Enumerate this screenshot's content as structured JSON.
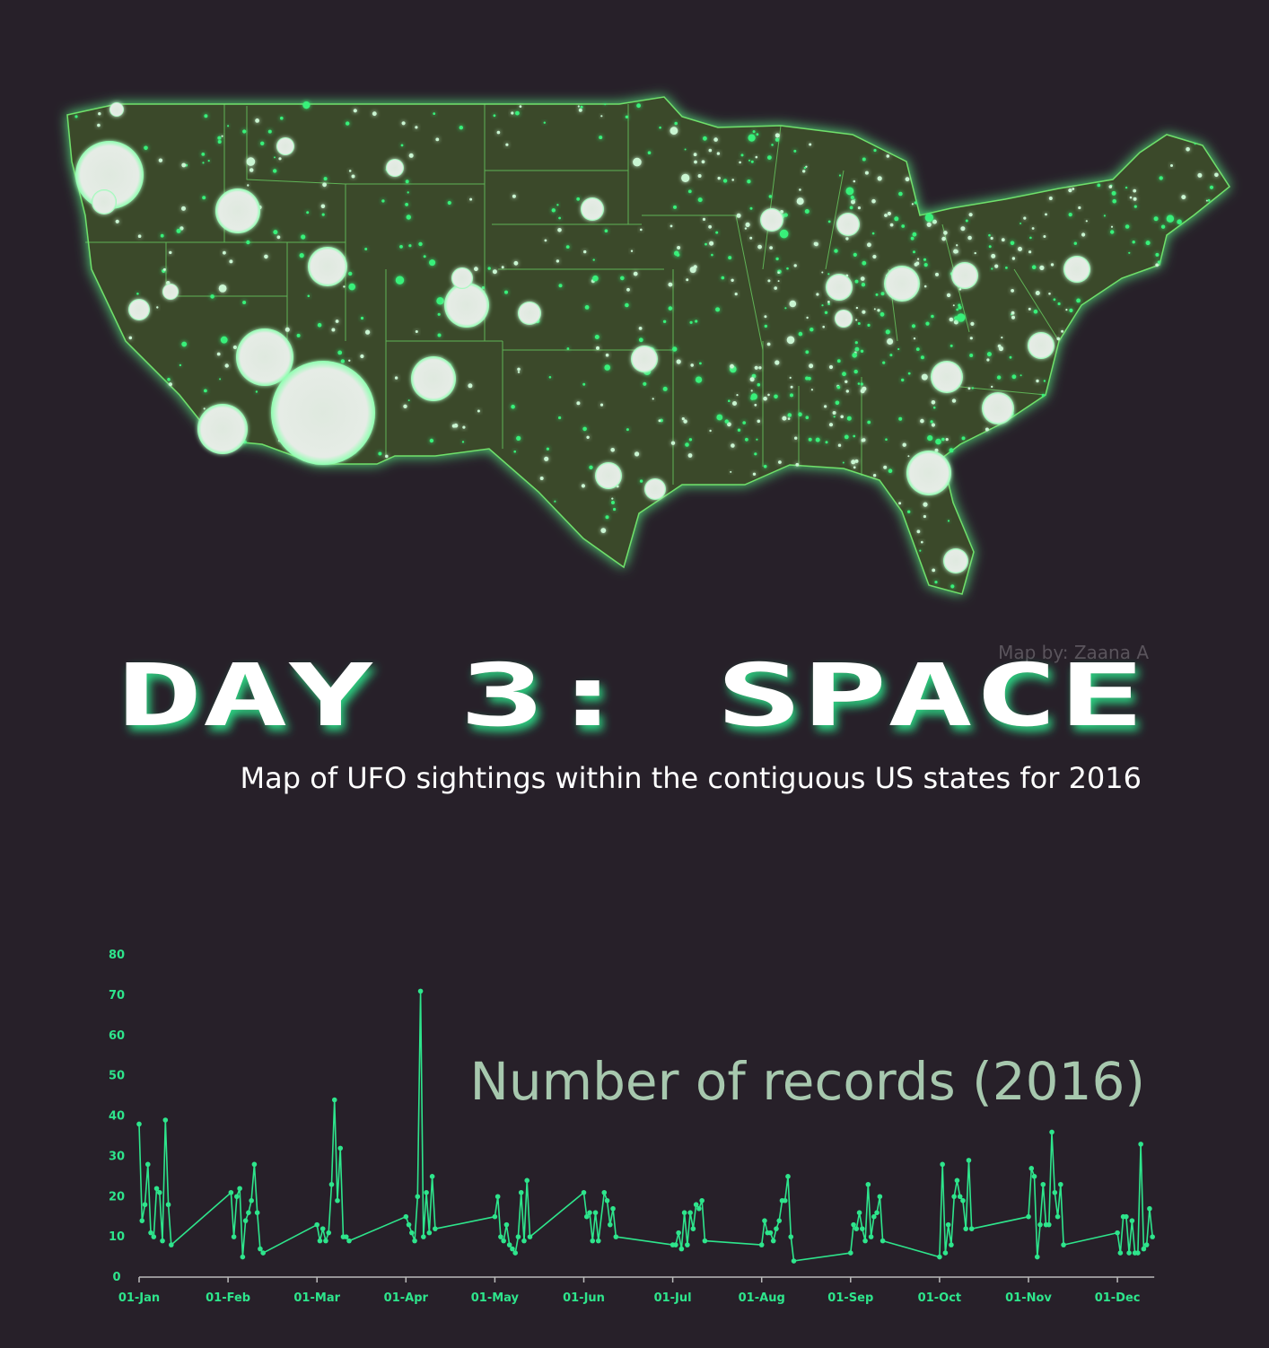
{
  "title": "DAY 3: SPACE",
  "subtitle": "Map of UFO sightings within the contiguous US states for 2016",
  "credit": "Map by: Zaana A",
  "chart_data": {
    "type": "line",
    "title": "Number of records (2016)",
    "x": [
      "01-Jan",
      "02-Jan",
      "03-Jan",
      "04-Jan",
      "05-Jan",
      "06-Jan",
      "07-Jan",
      "08-Jan",
      "09-Jan",
      "10-Jan",
      "11-Jan",
      "12-Jan",
      "02-Feb",
      "03-Feb",
      "04-Feb",
      "05-Feb",
      "06-Feb",
      "07-Feb",
      "08-Feb",
      "09-Feb",
      "10-Feb",
      "11-Feb",
      "12-Feb",
      "13-Feb",
      "01-Mar",
      "02-Mar",
      "03-Mar",
      "04-Mar",
      "05-Mar",
      "06-Mar",
      "07-Mar",
      "08-Mar",
      "09-Mar",
      "10-Mar",
      "11-Mar",
      "12-Mar",
      "01-Apr",
      "02-Apr",
      "03-Apr",
      "04-Apr",
      "05-Apr",
      "06-Apr",
      "07-Apr",
      "08-Apr",
      "09-Apr",
      "10-Apr",
      "11-Apr",
      "01-May",
      "02-May",
      "03-May",
      "04-May",
      "05-May",
      "06-May",
      "07-May",
      "08-May",
      "09-May",
      "10-May",
      "11-May",
      "12-May",
      "13-May",
      "01-Jun",
      "02-Jun",
      "03-Jun",
      "04-Jun",
      "05-Jun",
      "06-Jun",
      "08-Jun",
      "09-Jun",
      "10-Jun",
      "11-Jun",
      "12-Jun",
      "01-Jul",
      "02-Jul",
      "03-Jul",
      "04-Jul",
      "05-Jul",
      "06-Jul",
      "07-Jul",
      "08-Jul",
      "09-Jul",
      "10-Jul",
      "11-Jul",
      "12-Jul",
      "01-Aug",
      "02-Aug",
      "03-Aug",
      "04-Aug",
      "05-Aug",
      "06-Aug",
      "07-Aug",
      "08-Aug",
      "09-Aug",
      "10-Aug",
      "11-Aug",
      "12-Aug",
      "01-Sep",
      "02-Sep",
      "03-Sep",
      "04-Sep",
      "05-Sep",
      "06-Sep",
      "07-Sep",
      "08-Sep",
      "09-Sep",
      "10-Sep",
      "11-Sep",
      "12-Sep",
      "01-Oct",
      "02-Oct",
      "03-Oct",
      "04-Oct",
      "05-Oct",
      "06-Oct",
      "07-Oct",
      "08-Oct",
      "09-Oct",
      "10-Oct",
      "11-Oct",
      "12-Oct",
      "01-Nov",
      "02-Nov",
      "03-Nov",
      "04-Nov",
      "05-Nov",
      "06-Nov",
      "07-Nov",
      "08-Nov",
      "09-Nov",
      "10-Nov",
      "11-Nov",
      "12-Nov",
      "13-Nov",
      "01-Dec",
      "02-Dec",
      "03-Dec",
      "04-Dec",
      "05-Dec",
      "06-Dec",
      "07-Dec",
      "08-Dec",
      "09-Dec",
      "10-Dec",
      "11-Dec",
      "12-Dec",
      "13-Dec"
    ],
    "series": [
      {
        "color": "#2ee58c",
        "values": [
          38,
          14,
          18,
          28,
          11,
          10,
          22,
          21,
          9,
          39,
          18,
          8,
          21,
          10,
          20,
          22,
          5,
          14,
          16,
          19,
          28,
          16,
          7,
          6,
          13,
          9,
          12,
          9,
          11,
          23,
          44,
          19,
          32,
          10,
          10,
          9,
          15,
          13,
          11,
          9,
          20,
          71,
          10,
          21,
          11,
          25,
          12,
          15,
          20,
          10,
          9,
          13,
          8,
          7,
          6,
          10,
          21,
          9,
          24,
          10,
          21,
          15,
          16,
          9,
          16,
          9,
          21,
          19,
          13,
          17,
          10,
          8,
          8,
          11,
          7,
          16,
          8,
          16,
          12,
          18,
          17,
          19,
          9,
          8,
          14,
          11,
          11,
          9,
          12,
          14,
          19,
          19,
          25,
          10,
          4,
          6,
          13,
          12,
          16,
          12,
          9,
          23,
          10,
          15,
          16,
          20,
          9,
          5,
          28,
          6,
          13,
          8,
          20,
          24,
          20,
          19,
          12,
          29,
          12,
          15,
          27,
          25,
          5,
          13,
          23,
          13,
          13,
          36,
          21,
          15,
          23,
          8,
          11,
          6,
          15,
          15,
          6,
          14,
          6,
          6,
          33,
          7,
          8,
          17,
          10
        ]
      }
    ],
    "xlim": [
      "01-Jan",
      "13-Dec"
    ],
    "xticks": [
      "01-Jan",
      "01-Feb",
      "01-Mar",
      "01-Apr",
      "01-May",
      "01-Jun",
      "01-Jul",
      "01-Aug",
      "01-Sep",
      "01-Oct",
      "01-Nov",
      "01-Dec"
    ],
    "ylim": [
      0,
      80
    ],
    "yticks": [
      0,
      10,
      20,
      30,
      40,
      50,
      60,
      70,
      80
    ],
    "grid": false
  }
}
